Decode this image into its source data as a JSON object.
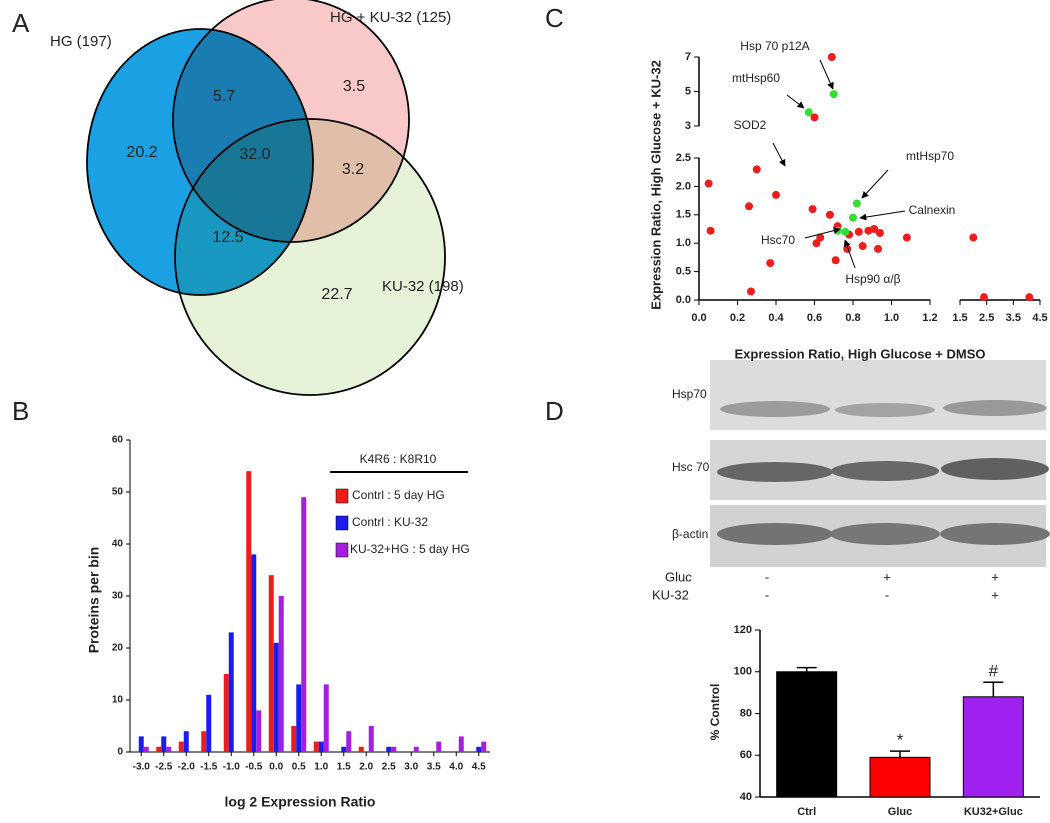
{
  "panel_labels": [
    "A",
    "B",
    "C",
    "D"
  ],
  "chart_data": [
    {
      "type": "venn",
      "sets": [
        {
          "name": "HG (197)",
          "color": "#1aa0e3"
        },
        {
          "name": "HG + KU-32 (125)",
          "color": "#f9c8c8"
        },
        {
          "name": "KU-32 (198)",
          "color": "#e6f2d8"
        }
      ],
      "values": [
        20.2,
        5.7,
        3.5,
        32,
        3.2,
        12.5,
        22.7
      ],
      "value_labels": [
        "20.2",
        "5.7",
        "3.5",
        "32.0",
        "3.2",
        "12.5",
        "22.7"
      ]
    },
    {
      "type": "bar",
      "xlabel": "log 2 Expression Ratio",
      "ylabel": "Proteins per bin",
      "categories": [
        "-3.0",
        "-2.5",
        "-2.0",
        "-1.5",
        "-1.0",
        "-0.5",
        "0.0",
        "0.5",
        "1.0",
        "1.5",
        "2.0",
        "2.5",
        "3.0",
        "3.5",
        "4.0",
        "4.5"
      ],
      "series": [
        {
          "name": "Contrl : 5 day HG",
          "color": "#ee1c1c",
          "values": [
            0,
            1,
            2,
            4,
            15,
            54,
            34,
            5,
            2,
            0,
            1,
            0,
            0,
            0,
            0,
            0
          ]
        },
        {
          "name": "Contrl : KU-32",
          "color": "#1c1cee",
          "values": [
            3,
            3,
            4,
            11,
            23,
            38,
            21,
            13,
            2,
            1,
            0,
            1,
            0,
            0,
            0,
            1
          ]
        },
        {
          "name": "KU-32+HG : 5 day HG",
          "color": "#a51fe0",
          "values": [
            1,
            1,
            0,
            0,
            0,
            8,
            30,
            49,
            13,
            4,
            5,
            1,
            1,
            2,
            3,
            2
          ]
        }
      ],
      "legend_title": "K4R6 : K8R10",
      "legend": "upper right",
      "ylim": [
        0,
        60
      ],
      "yticks": [
        0,
        10,
        20,
        30,
        40,
        50,
        60
      ]
    },
    {
      "type": "scatter",
      "xlabel": "Expression Ratio, High Glucose + DMSO",
      "ylabel": "Expression Ratio, High Glucose + KU-32",
      "x_segments": [
        {
          "xlim": [
            0,
            1.2
          ],
          "xticks": [
            {
              "value": 0,
              "label": "0.0"
            },
            0.2,
            0.4,
            0.6,
            0.8,
            {
              "value": 1,
              "label": "1.0"
            },
            1.2
          ]
        },
        {
          "xlim": [
            1.5,
            4.5
          ],
          "xticks": [
            1.5,
            2.5,
            3.5,
            4.5
          ]
        }
      ],
      "y_segments": [
        {
          "ylim": [
            0,
            2.5
          ],
          "yticks": [
            {
              "value": 0,
              "label": "0.0"
            },
            0.5,
            {
              "value": 1,
              "label": "1.0"
            },
            1.5,
            {
              "value": 2,
              "label": "2.0"
            },
            2.5
          ]
        },
        {
          "ylim": [
            3,
            7
          ],
          "yticks": [
            3,
            5,
            7
          ]
        }
      ],
      "series": [
        {
          "color": "#ee1c1c",
          "x": [
            0.69,
            0.6,
            0.3,
            0.05,
            0.06,
            0.26,
            0.4,
            0.59,
            0.68,
            0.72,
            0.61,
            0.63,
            0.78,
            0.83,
            0.88,
            0.91,
            0.94,
            0.93,
            0.85,
            0.77,
            0.71,
            0.37,
            0.27,
            1.08,
            2.0,
            2.4,
            4.1
          ],
          "y": [
            7,
            3.5,
            2.3,
            2.05,
            1.22,
            1.65,
            1.85,
            1.6,
            1.5,
            1.3,
            1.0,
            1.1,
            1.15,
            1.2,
            1.22,
            1.25,
            1.18,
            0.9,
            0.95,
            0.9,
            0.7,
            0.65,
            0.15,
            1.1,
            1.1,
            0.05,
            0.05
          ]
        },
        {
          "color": "#33dd33",
          "x": [
            0.7,
            0.57,
            0.82,
            0.8,
            0.76,
            0.72
          ],
          "y": [
            4.85,
            3.8,
            1.7,
            1.45,
            1.2,
            1.22
          ]
        }
      ],
      "annotations": [
        "Hsp 70 p12A",
        "mtHsp60",
        "SOD2",
        "mtHsp70",
        "Calnexin",
        "Hsc70",
        "Hsp90 α/β"
      ]
    },
    {
      "type": "bar",
      "ylabel": "% Control",
      "categories": [
        "Ctrl",
        "Gluc",
        "KU32+Gluc"
      ],
      "values": [
        100,
        59,
        88
      ],
      "errors": [
        2,
        3,
        7
      ],
      "colors": [
        "#000000",
        "#ff0000",
        "#a020f0"
      ],
      "annotations": [
        {
          "text": "*",
          "x": "Gluc"
        },
        {
          "text": "#",
          "x": "KU32+Gluc"
        }
      ],
      "ylim": [
        40,
        120
      ],
      "yticks": [
        40,
        60,
        80,
        100,
        120
      ]
    }
  ],
  "blot": {
    "rows": [
      "Hsp70",
      "Hsc 70",
      "β-actin"
    ],
    "treatments": [
      {
        "name": "Gluc",
        "signs": [
          "-",
          "+",
          "+"
        ]
      },
      {
        "name": "KU-32",
        "signs": [
          "-",
          "-",
          "+"
        ]
      }
    ]
  }
}
